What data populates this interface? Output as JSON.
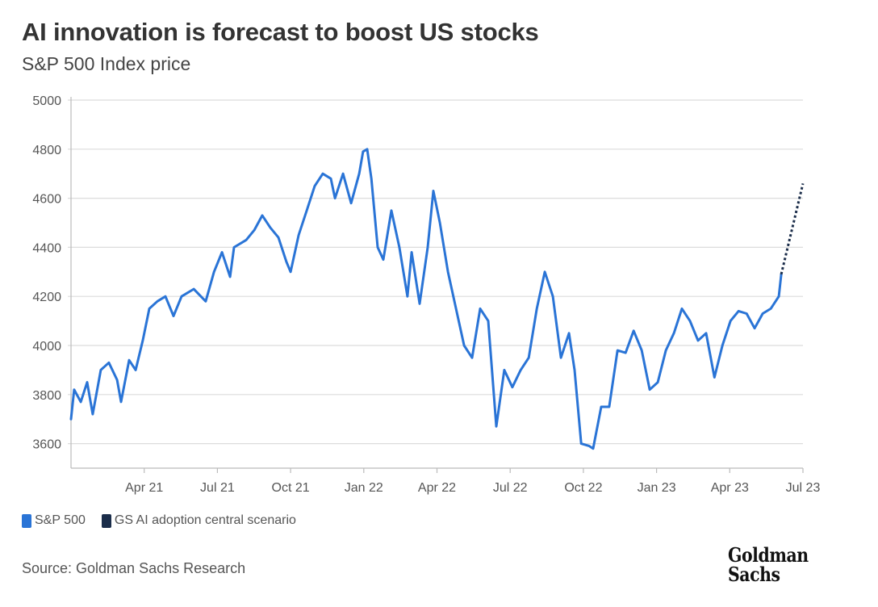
{
  "chart_data": {
    "type": "line",
    "title": "AI innovation is forecast to boost US stocks",
    "subtitle": "S&P 500 Index price",
    "xlabel": "",
    "ylabel": "",
    "x_unit": "months since Jan 2021",
    "xlim": [
      0,
      30
    ],
    "ylim": [
      3500,
      5000
    ],
    "yticks": [
      3600,
      3800,
      4000,
      4200,
      4400,
      4600,
      4800,
      5000
    ],
    "xticks": [
      {
        "t": 3,
        "label": "Apr 21"
      },
      {
        "t": 6,
        "label": "Jul 21"
      },
      {
        "t": 9,
        "label": "Oct 21"
      },
      {
        "t": 12,
        "label": "Jan 22"
      },
      {
        "t": 15,
        "label": "Apr 22"
      },
      {
        "t": 18,
        "label": "Jul 22"
      },
      {
        "t": 21,
        "label": "Oct 22"
      },
      {
        "t": 24,
        "label": "Jan 23"
      },
      {
        "t": 27,
        "label": "Apr 23"
      },
      {
        "t": 30,
        "label": "Jul 23"
      }
    ],
    "grid": true,
    "legend_position": "bottom-left",
    "series": [
      {
        "name": "S&P 500",
        "color": "#2a74d6",
        "style": "solid",
        "t": [
          0,
          0.13,
          0.4,
          0.66,
          0.89,
          1.22,
          1.55,
          1.89,
          2.05,
          2.38,
          2.65,
          2.94,
          3.21,
          3.54,
          3.87,
          4.2,
          4.53,
          5.03,
          5.52,
          5.86,
          6.19,
          6.52,
          6.68,
          7.18,
          7.51,
          7.84,
          8.17,
          8.5,
          8.83,
          9.0,
          9.33,
          9.66,
          9.99,
          10.32,
          10.65,
          10.82,
          11.15,
          11.48,
          11.81,
          11.97,
          12.14,
          12.31,
          12.57,
          12.8,
          13.13,
          13.46,
          13.79,
          13.96,
          14.29,
          14.62,
          14.85,
          15.12,
          15.45,
          15.78,
          16.11,
          16.44,
          16.77,
          17.1,
          17.43,
          17.76,
          18.09,
          18.43,
          18.76,
          19.09,
          19.42,
          19.75,
          20.08,
          20.41,
          20.64,
          20.91,
          21.24,
          21.4,
          21.73,
          22.06,
          22.4,
          22.73,
          23.06,
          23.39,
          23.72,
          24.05,
          24.38,
          24.71,
          25.04,
          25.37,
          25.7,
          26.03,
          26.37,
          26.7,
          27.03,
          27.36,
          27.69,
          28.02,
          28.35,
          28.68,
          29.01,
          29.11
        ],
        "values": [
          3700,
          3820,
          3770,
          3850,
          3720,
          3900,
          3930,
          3860,
          3770,
          3940,
          3900,
          4020,
          4150,
          4180,
          4200,
          4120,
          4200,
          4230,
          4180,
          4300,
          4380,
          4280,
          4400,
          4430,
          4470,
          4530,
          4480,
          4440,
          4340,
          4300,
          4450,
          4550,
          4650,
          4700,
          4680,
          4600,
          4700,
          4580,
          4700,
          4790,
          4800,
          4680,
          4400,
          4350,
          4550,
          4400,
          4200,
          4380,
          4170,
          4400,
          4630,
          4500,
          4300,
          4150,
          4000,
          3950,
          4150,
          4100,
          3670,
          3900,
          3830,
          3900,
          3950,
          4150,
          4300,
          4200,
          3950,
          4050,
          3900,
          3600,
          3590,
          3580,
          3750,
          3750,
          3980,
          3970,
          4060,
          3980,
          3820,
          3850,
          3980,
          4050,
          4150,
          4100,
          4020,
          4050,
          3870,
          4000,
          4100,
          4140,
          4130,
          4070,
          4130,
          4150,
          4200,
          4290
        ]
      },
      {
        "name": "GS AI adoption central scenario",
        "color": "#1b2d4a",
        "style": "dotted",
        "t": [
          29.11,
          30
        ],
        "values": [
          4290,
          4660
        ]
      }
    ]
  },
  "source": "Source: Goldman Sachs Research",
  "logo": {
    "line1": "Goldman",
    "line2": "Sachs"
  }
}
